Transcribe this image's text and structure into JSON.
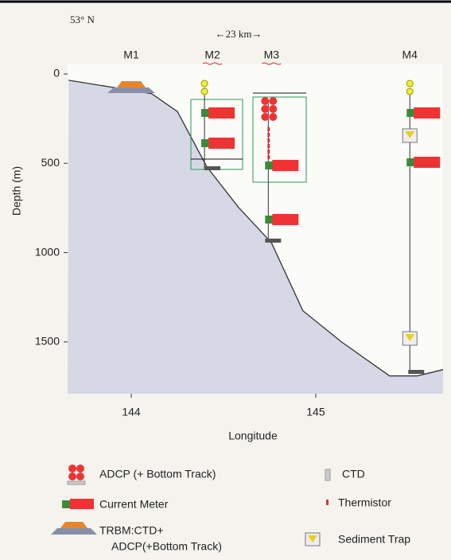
{
  "header": {
    "latitude": "53° N",
    "distance": "←23 km→"
  },
  "plot": {
    "xlabel": "Longitude",
    "ylabel": "Depth (m)",
    "xlim": [
      143.655,
      145.69
    ],
    "ylim": [
      0,
      1790
    ],
    "xticks": [
      144,
      145
    ],
    "yticks": [
      0,
      500,
      1000,
      1500
    ],
    "seafloor": {
      "x": [
        143.66,
        144.11,
        144.25,
        144.41,
        144.58,
        144.76,
        144.93,
        145.14,
        145.4,
        145.55,
        145.69
      ],
      "y": [
        35,
        110,
        210,
        520,
        745,
        945,
        1325,
        1500,
        1690,
        1690,
        1655
      ]
    },
    "moorings": [
      {
        "label": "M1",
        "x": 144.0
      },
      {
        "label": "M2",
        "x": 144.44
      },
      {
        "label": "M3",
        "x": 144.76
      },
      {
        "label": "M4",
        "x": 145.51
      }
    ]
  },
  "legend": {
    "adcp": "ADCP (+ Bottom Track)",
    "ctd": "CTD",
    "current_meter": "Current Meter",
    "thermistor": "Thermistor",
    "trbm": [
      "TRBM:CTD+",
      "ADCP(+Bottom Track)"
    ],
    "sediment_trap": "Sediment Trap"
  }
}
